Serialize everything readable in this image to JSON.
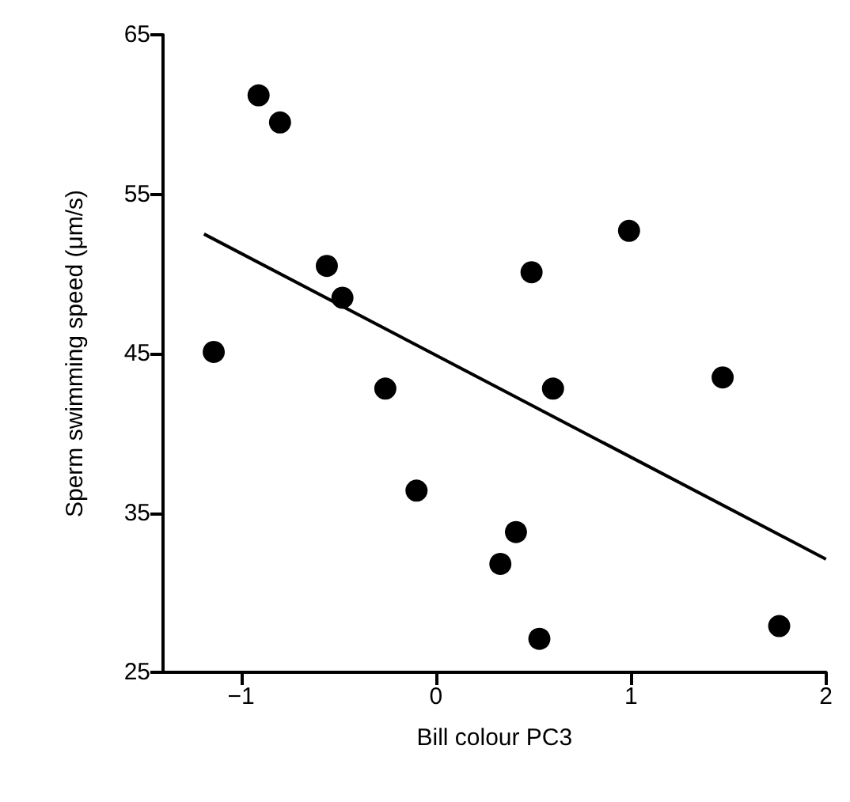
{
  "chart_data": {
    "type": "scatter",
    "xlabel": "Bill colour PC3",
    "ylabel": "Sperm swimming speed (μm/s)",
    "xlim": [
      -1.4,
      2
    ],
    "ylim": [
      25,
      65
    ],
    "xticks": [
      {
        "value": -1,
        "label": "−1"
      },
      0,
      1,
      2
    ],
    "yticks": [
      25,
      35,
      45,
      55,
      65
    ],
    "grid": false,
    "marker": "circle",
    "series": [
      {
        "color": "#000000",
        "x": [
          -0.91,
          -0.8,
          -0.56,
          -0.48,
          -1.14,
          -0.26,
          0.49,
          0.99,
          0.6,
          1.47,
          -0.1,
          0.41,
          0.33,
          0.53,
          1.76
        ],
        "values": [
          61.2,
          59.5,
          50.5,
          48.5,
          45.1,
          42.8,
          50.1,
          52.7,
          42.8,
          43.5,
          36.4,
          33.8,
          31.8,
          27.1,
          27.9
        ]
      },
      {
        "type": "line",
        "color": "#000000",
        "line_style": "solid",
        "marker": "none",
        "x": [
          -1.19,
          2.0
        ],
        "values": [
          52.5,
          32.1
        ]
      }
    ]
  }
}
